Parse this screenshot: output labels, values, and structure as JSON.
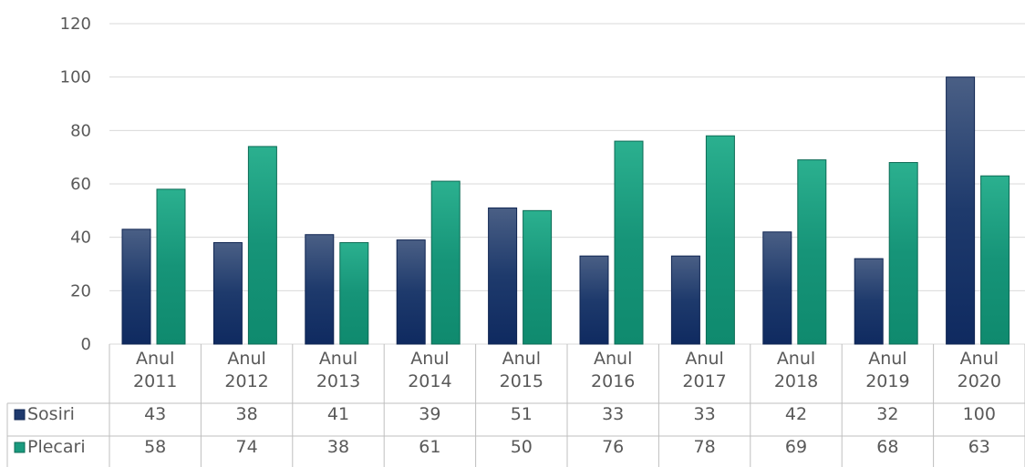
{
  "chart_data": {
    "type": "bar",
    "categories": [
      [
        "Anul",
        "2011"
      ],
      [
        "Anul",
        "2012"
      ],
      [
        "Anul",
        "2013"
      ],
      [
        "Anul",
        "2014"
      ],
      [
        "Anul",
        "2015"
      ],
      [
        "Anul",
        "2016"
      ],
      [
        "Anul",
        "2017"
      ],
      [
        "Anul",
        "2018"
      ],
      [
        "Anul",
        "2019"
      ],
      [
        "Anul",
        "2020"
      ]
    ],
    "series": [
      {
        "name": "Sosiri",
        "values": [
          43,
          38,
          41,
          39,
          51,
          33,
          33,
          42,
          32,
          100
        ],
        "color": "#1f3a6e"
      },
      {
        "name": "Plecari",
        "values": [
          58,
          74,
          38,
          61,
          50,
          76,
          78,
          69,
          68,
          63
        ],
        "color": "#1a9a7e"
      }
    ],
    "yticks": [
      0,
      20,
      40,
      60,
      80,
      100,
      120
    ],
    "ylim": [
      0,
      120
    ],
    "grid": true,
    "legend": "data-table",
    "title": "",
    "xlabel": "",
    "ylabel": ""
  }
}
